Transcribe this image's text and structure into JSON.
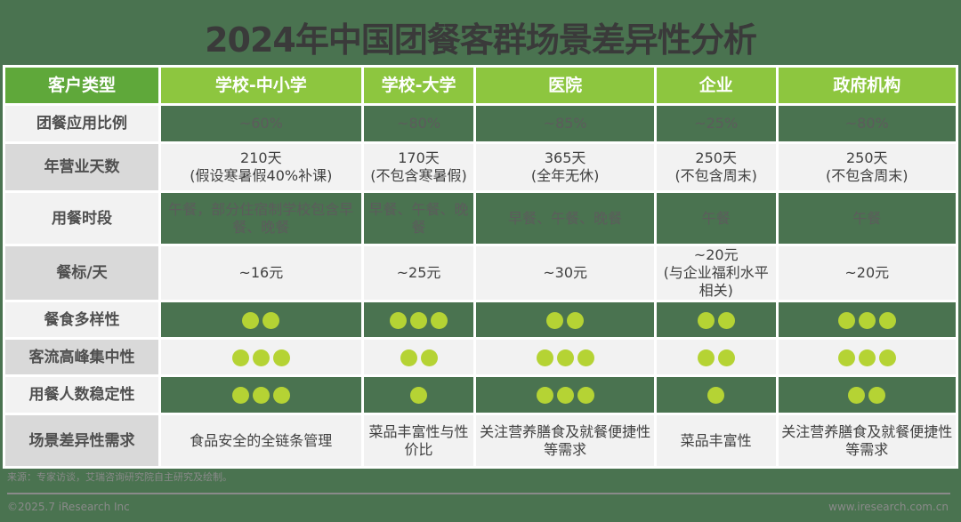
{
  "title": "2024年中国团餐客群场景差异性分析",
  "columns": [
    "客户类型",
    "学校-中小学",
    "学校-大学",
    "医院",
    "企业",
    "政府机构"
  ],
  "rows": [
    {
      "label": "团餐应用比例",
      "style": "dk",
      "cells": [
        "~60%",
        "~80%",
        "~85%",
        "~25%",
        "~80%"
      ]
    },
    {
      "label": "年营业天数",
      "style": "lt",
      "cells": [
        "210天\n(假设寒暑假40%补课)",
        "170天\n(不包含寒暑假)",
        "365天\n(全年无休)",
        "250天\n(不包含周末)",
        "250天\n(不包含周末)"
      ]
    },
    {
      "label": "用餐时段",
      "style": "dk",
      "cells": [
        "午餐，部分住宿制学校包含早餐、晚餐",
        "早餐、午餐、晚餐",
        "早餐、午餐、晚餐",
        "午餐",
        "午餐"
      ]
    },
    {
      "label": "餐标/天",
      "style": "lt",
      "cells": [
        "~16元",
        "~25元",
        "~30元",
        "~20元\n(与企业福利水平相关)",
        "~20元"
      ]
    },
    {
      "label": "餐食多样性",
      "style": "dk",
      "dots": [
        2,
        3,
        2,
        2,
        3
      ]
    },
    {
      "label": "客流高峰集中性",
      "style": "lt",
      "dots": [
        3,
        2,
        3,
        2,
        3
      ]
    },
    {
      "label": "用餐人数稳定性",
      "style": "dk",
      "dots": [
        3,
        1,
        3,
        1,
        2
      ]
    },
    {
      "label": "场景差异性需求",
      "style": "lt",
      "cells": [
        "食品安全的全链条管理",
        "菜品丰富性与性价比",
        "关注营养膳食及就餐便捷性等需求",
        "菜品丰富性",
        "关注营养膳食及就餐便捷性等需求"
      ]
    }
  ],
  "footer": {
    "source": "来源：专家访谈，艾瑞咨询研究院自主研究及绘制。",
    "copyright": "©2025.7 iResearch Inc",
    "website": "www.iresearch.com.cn"
  },
  "colors": {
    "background": "#4a7350",
    "header": "#8dc63f",
    "dot": "#b5d334"
  }
}
